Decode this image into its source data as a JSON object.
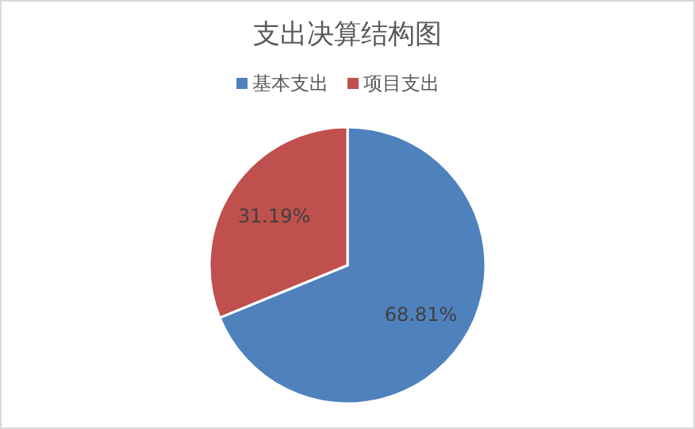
{
  "chart_data": {
    "type": "pie",
    "title": "支出决算结构图",
    "categories": [
      "基本支出",
      "项目支出"
    ],
    "values": [
      68.81,
      31.19
    ],
    "colors": [
      "#4f81bd",
      "#c0504d"
    ],
    "value_labels": [
      "68.81%",
      "31.19%"
    ],
    "legend": "top"
  }
}
